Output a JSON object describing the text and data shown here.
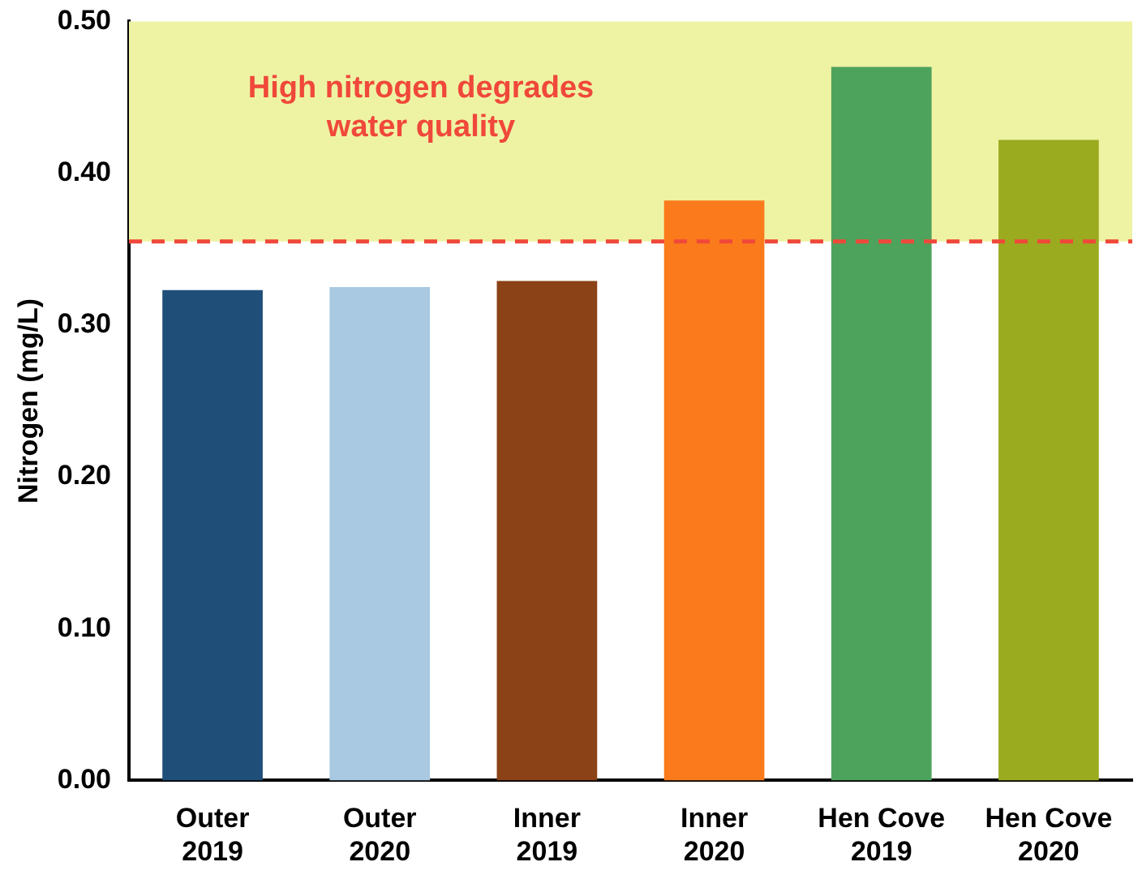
{
  "chart_data": {
    "type": "bar",
    "ylabel": "Nitrogen (mg/L)",
    "categories": [
      "Outer 2019",
      "Outer 2020",
      "Inner 2019",
      "Inner 2020",
      "Hen Cove 2019",
      "Hen Cove 2020"
    ],
    "values": [
      0.323,
      0.325,
      0.329,
      0.382,
      0.47,
      0.422
    ],
    "colors": [
      "#1f4e79",
      "#a9c9e2",
      "#8b4216",
      "#fb7a1b",
      "#4ea35c",
      "#9aab1f"
    ],
    "ylim": [
      0,
      0.5
    ],
    "yticks": [
      {
        "value": 0,
        "label": "0.00"
      },
      {
        "value": 0.1,
        "label": "0.10"
      },
      {
        "value": 0.2,
        "label": "0.20"
      },
      {
        "value": 0.3,
        "label": "0.30"
      },
      {
        "value": 0.4,
        "label": "0.40"
      },
      {
        "value": 0.5,
        "label": "0.50"
      }
    ],
    "bands": [
      {
        "axis": "y",
        "from": 0.355,
        "to": 0.5,
        "label": "High nitrogen degrades water quality",
        "color": "#eef3a4"
      }
    ],
    "ref_lines": [
      {
        "axis": "y",
        "value": 0.355,
        "color": "#f0483a",
        "line_style": "dashed"
      }
    ],
    "grid": false,
    "legend": false
  }
}
